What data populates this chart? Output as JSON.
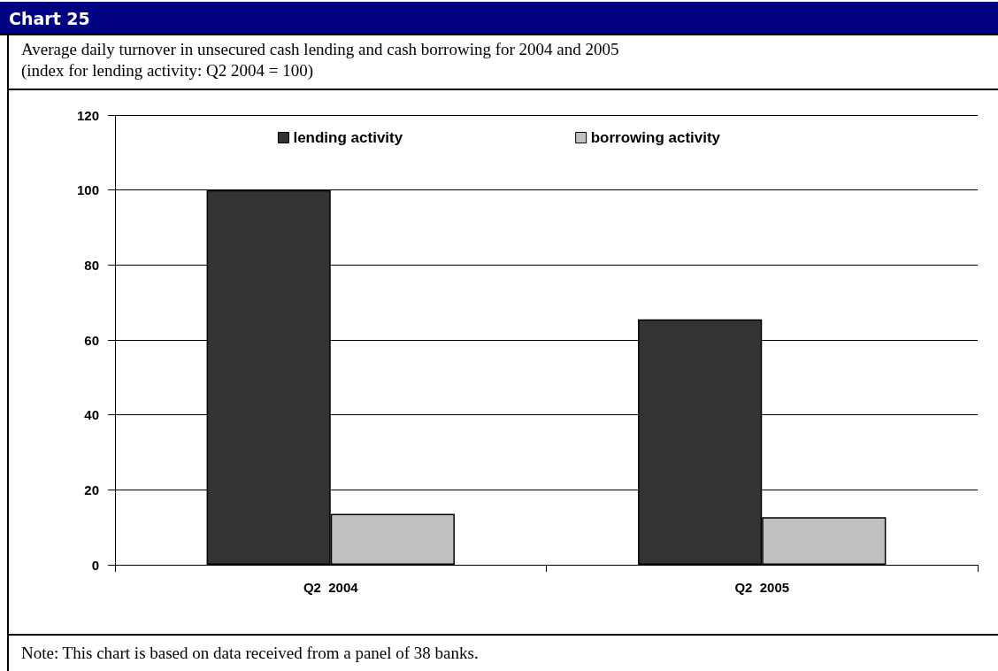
{
  "chart_data": {
    "type": "bar",
    "title": "Chart 25",
    "subtitle": "Average daily turnover in unsecured cash lending and cash borrowing for 2004 and 2005\n(index for lending activity: Q2 2004 = 100)",
    "annotations": [
      "Note: This chart is based on data received from a panel of 38 banks."
    ],
    "categories": [
      "Q2  2004",
      "Q2  2005"
    ],
    "series": [
      {
        "name": "lending activity",
        "color": "#333333",
        "values": [
          100,
          65.5
        ]
      },
      {
        "name": "borrowing activity",
        "color": "#c0c0c0",
        "values": [
          13.6,
          12.7
        ]
      }
    ],
    "ylim": [
      0,
      120
    ],
    "yticks": [
      0,
      20,
      40,
      60,
      80,
      100,
      120
    ],
    "grid": "y",
    "legend": "top"
  }
}
